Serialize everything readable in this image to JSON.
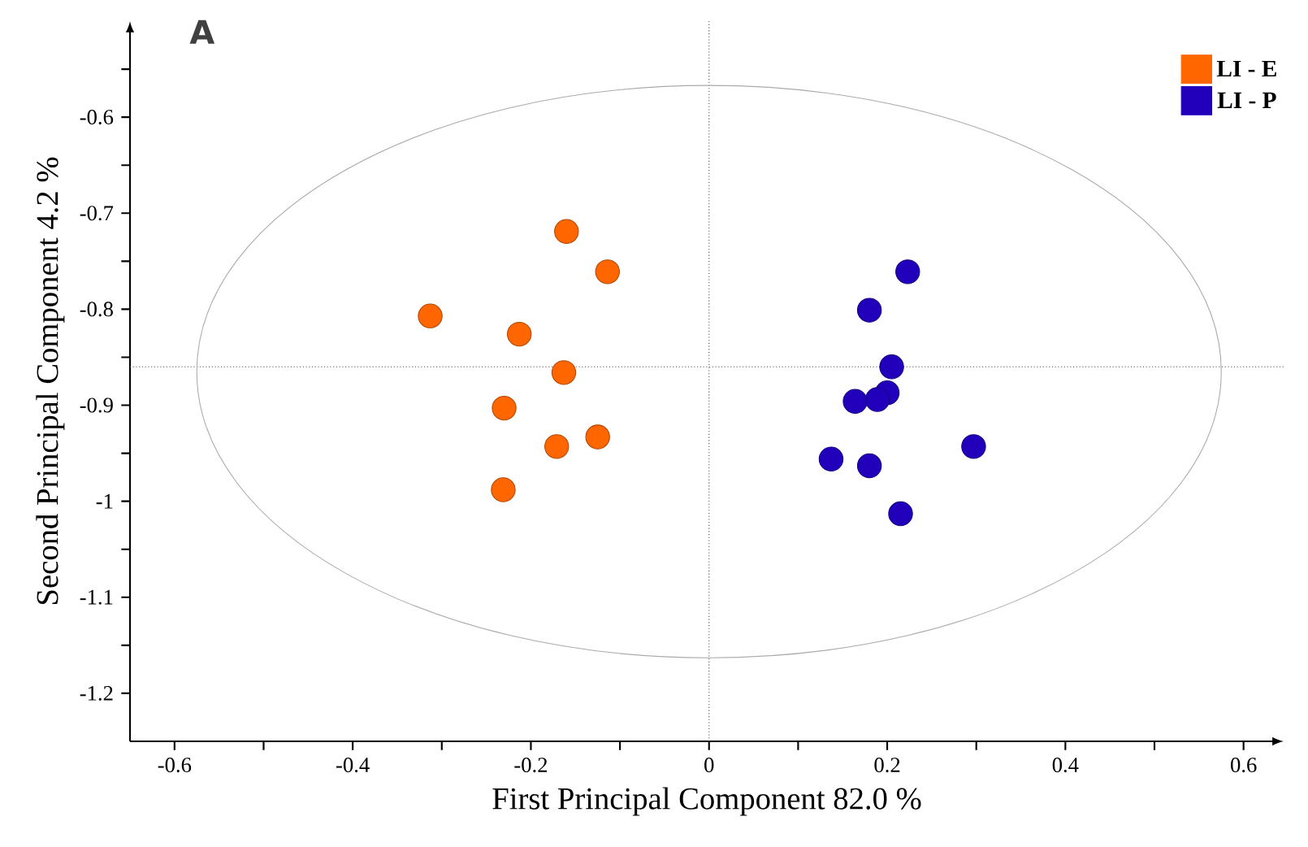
{
  "chart_data": {
    "type": "scatter",
    "xlabel": "First Principal Component 82.0 %",
    "ylabel": "Second Principal Component 4.2 %",
    "annotations": [
      "A"
    ],
    "legend": "top right",
    "grid": false,
    "xlim": [
      -0.65,
      0.645
    ],
    "ylim": [
      -1.25,
      -0.5
    ],
    "xticks": [
      -0.6,
      {
        "value": -0.5,
        "label": null
      },
      -0.4,
      {
        "value": -0.3,
        "label": null
      },
      -0.2,
      {
        "value": -0.1,
        "label": null
      },
      0,
      {
        "value": 0.1,
        "label": null
      },
      0.2,
      {
        "value": 0.3,
        "label": null
      },
      0.4,
      {
        "value": 0.5,
        "label": null
      },
      0.6
    ],
    "yticks": [
      {
        "value": -0.55,
        "label": null
      },
      -0.6,
      {
        "value": -0.65,
        "label": null
      },
      -0.7,
      {
        "value": -0.75,
        "label": null
      },
      -0.8,
      {
        "value": -0.85,
        "label": null
      },
      -0.9,
      {
        "value": -0.95,
        "label": null
      },
      -1,
      {
        "value": -1.05,
        "label": null
      },
      -1.1,
      {
        "value": -1.15,
        "label": null
      },
      -1.2
    ],
    "ref_lines": [
      {
        "axis": "x",
        "value": 0,
        "color": "#444444",
        "line_style": "dotted"
      },
      {
        "axis": "y",
        "value": -0.86,
        "color": "#444444",
        "line_style": "dotted"
      }
    ],
    "series": [
      {
        "name": "LI - E",
        "color": "#ff6600",
        "x": [
          -0.16,
          -0.114,
          -0.313,
          -0.213,
          -0.163,
          -0.23,
          -0.125,
          -0.171,
          -0.231
        ],
        "values": [
          -0.719,
          -0.761,
          -0.807,
          -0.826,
          -0.866,
          -0.903,
          -0.933,
          -0.943,
          -0.988
        ]
      },
      {
        "name": "LI - P",
        "color": "#2200bb",
        "x": [
          0.223,
          0.18,
          0.205,
          0.2,
          0.189,
          0.164,
          0.297,
          0.137,
          0.18,
          0.215
        ],
        "values": [
          -0.761,
          -0.801,
          -0.86,
          -0.887,
          -0.894,
          -0.896,
          -0.943,
          -0.956,
          -0.963,
          -1.013
        ]
      }
    ]
  }
}
